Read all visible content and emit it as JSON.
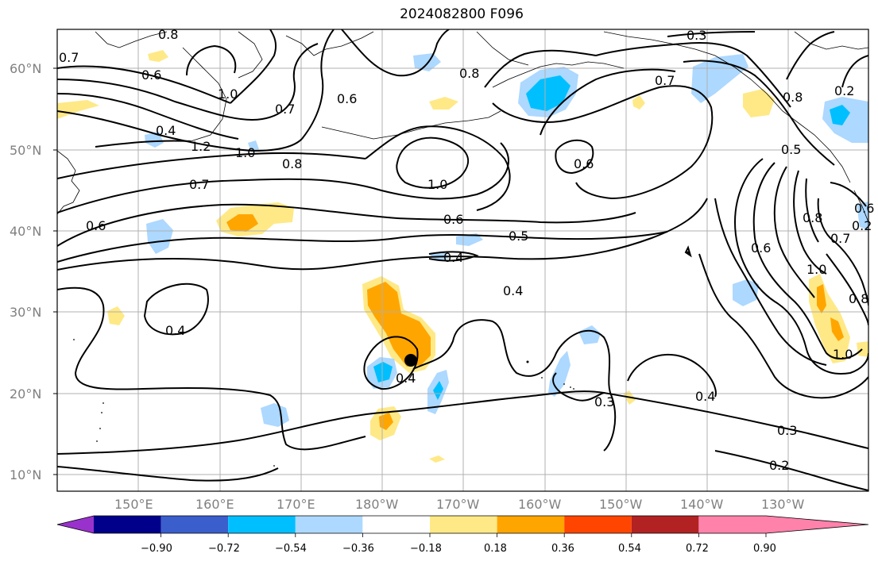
{
  "title": "2024082800 F096",
  "lat_labels": [
    "60°N",
    "50°N",
    "40°N",
    "30°N",
    "20°N",
    "10°N"
  ],
  "lon_labels": [
    "150°E",
    "160°E",
    "170°E",
    "180°W",
    "170°W",
    "160°W",
    "150°W",
    "140°W",
    "130°W"
  ],
  "colorbar": {
    "tick_labels": [
      "−0.90",
      "−0.72",
      "−0.54",
      "−0.36",
      "−0.18",
      "0.18",
      "0.36",
      "0.54",
      "0.72",
      "0.90"
    ],
    "colors": [
      "#9932cc",
      "#00008b",
      "#3a5fcd",
      "#00bfff",
      "#add8ff",
      "#ffffff",
      "#ffe987",
      "#ffa500",
      "#ff4500",
      "#b22222",
      "#ff82ab"
    ]
  },
  "contour_labels": [
    "0.8",
    "0.7",
    "0.6",
    "1.0",
    "0.4",
    "1.2",
    "0.7",
    "0.6",
    "1.0",
    "0.8",
    "0.7",
    "0.6",
    "0.8",
    "0.7",
    "0.3",
    "1.0",
    "0.6",
    "0.6",
    "0.5",
    "0.4",
    "0.4",
    "0.4",
    "0.4",
    "0.3",
    "0.4",
    "0.3",
    "0.2",
    "0.2",
    "0.8",
    "0.5",
    "0.2",
    "0.6",
    "0.7",
    "1.0",
    "0.8",
    "1.0",
    "0.8",
    "0.6"
  ],
  "storm_marker": "tropical-cyclone-position"
}
